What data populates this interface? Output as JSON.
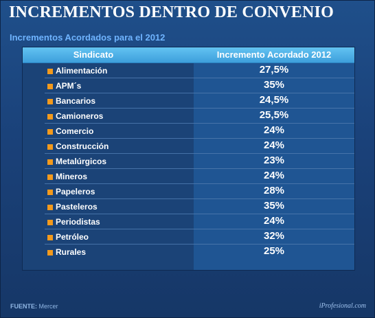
{
  "title": "INCREMENTOS DENTRO DE CONVENIO",
  "subtitle": "Incrementos Acordados para el 2012",
  "table": {
    "headers": [
      "Sindicato",
      "Incremento Acordado 2012"
    ],
    "rows": [
      {
        "name": "Alimentación",
        "value": "27,5%"
      },
      {
        "name": "APM´s",
        "value": "35%"
      },
      {
        "name": "Bancarios",
        "value": "24,5%"
      },
      {
        "name": "Camioneros",
        "value": "25,5%"
      },
      {
        "name": "Comercio",
        "value": "24%"
      },
      {
        "name": "Construcción",
        "value": "24%"
      },
      {
        "name": "Metalúrgicos",
        "value": "23%"
      },
      {
        "name": "Mineros",
        "value": "24%"
      },
      {
        "name": "Papeleros",
        "value": "28%"
      },
      {
        "name": "Pasteleros",
        "value": "35%"
      },
      {
        "name": "Periodistas",
        "value": "24%"
      },
      {
        "name": "Petróleo",
        "value": "32%"
      },
      {
        "name": "Rurales",
        "value": "25%"
      }
    ]
  },
  "watermark": "iProfesional.com",
  "footer": {
    "source_label": "FUENTE:",
    "source_value": "Mercer",
    "brand": "iProfesional.com"
  },
  "colors": {
    "background": "#1a4179",
    "header": "#3d9fdc",
    "bullet": "#f39a1d",
    "subtitle": "#6fb4ff"
  }
}
